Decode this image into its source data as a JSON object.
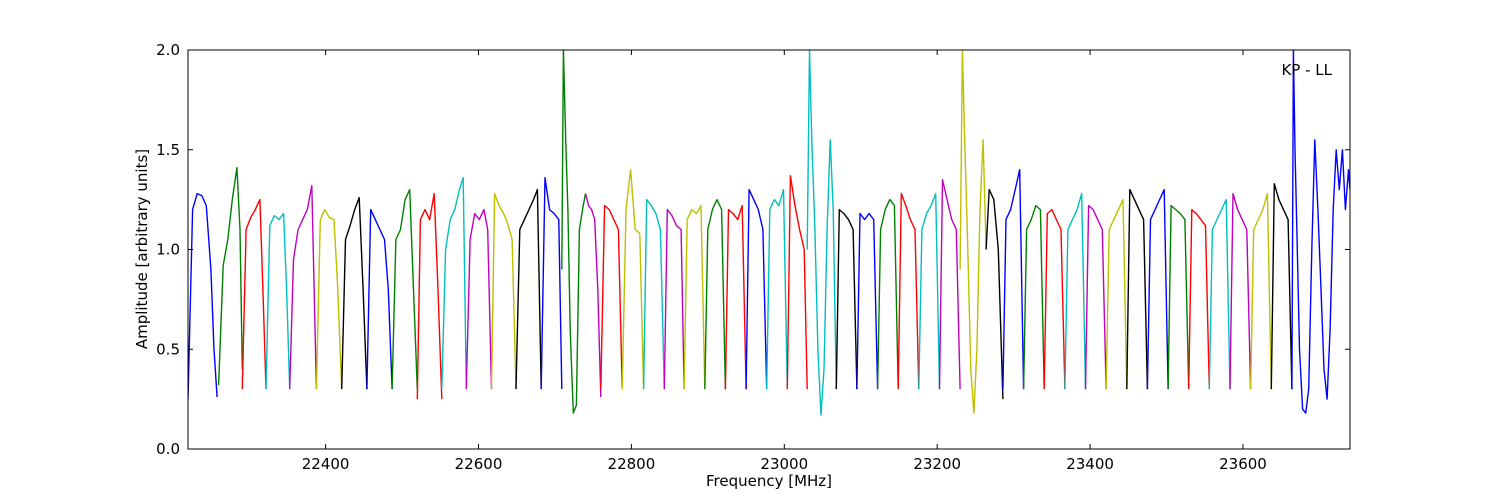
{
  "chart_data": {
    "type": "line",
    "title": "",
    "xlabel": "Frequency [MHz]",
    "ylabel": "Amplitude [arbitrary units]",
    "annotation": "KP - LL",
    "xlim": [
      22220,
      23740
    ],
    "ylim": [
      0.0,
      2.0
    ],
    "xticks": [
      22400,
      22600,
      22800,
      23000,
      23200,
      23400,
      23600
    ],
    "xtick_labels": [
      "22400",
      "22600",
      "22800",
      "23000",
      "23200",
      "23400",
      "23600"
    ],
    "yticks": [
      0.0,
      0.5,
      1.0,
      1.5,
      2.0
    ],
    "ytick_labels": [
      "0.0",
      "0.5",
      "1.0",
      "1.5",
      "2.0"
    ],
    "grid": false,
    "legend": "none",
    "color_cycle": [
      "#0000ff",
      "#008000",
      "#ff0000",
      "#00bfbf",
      "#bf00bf",
      "#bfbf00",
      "#000000"
    ],
    "series": [
      {
        "color": "#0000ff",
        "x": [
          22220,
          22226,
          22232,
          22238,
          22244,
          22250,
          22254,
          22258
        ],
        "y": [
          0.25,
          1.2,
          1.28,
          1.27,
          1.22,
          0.9,
          0.5,
          0.26
        ]
      },
      {
        "color": "#008000",
        "x": [
          22260,
          22266,
          22272,
          22278,
          22284,
          22288,
          22291
        ],
        "y": [
          0.32,
          0.92,
          1.05,
          1.25,
          1.41,
          1.1,
          0.4
        ]
      },
      {
        "color": "#ff0000",
        "x": [
          22291,
          22296,
          22302,
          22308,
          22314,
          22318,
          22322
        ],
        "y": [
          0.3,
          1.1,
          1.16,
          1.2,
          1.25,
          0.8,
          0.3
        ]
      },
      {
        "color": "#00bfbf",
        "x": [
          22322,
          22327,
          22333,
          22339,
          22345,
          22349,
          22353
        ],
        "y": [
          0.3,
          1.12,
          1.17,
          1.15,
          1.18,
          0.8,
          0.3
        ]
      },
      {
        "color": "#bf00bf",
        "x": [
          22353,
          22358,
          22364,
          22370,
          22376,
          22382,
          22388
        ],
        "y": [
          0.3,
          0.95,
          1.1,
          1.15,
          1.2,
          1.32,
          0.3
        ]
      },
      {
        "color": "#bfbf00",
        "x": [
          22388,
          22393,
          22399,
          22405,
          22411,
          22416,
          22421
        ],
        "y": [
          0.3,
          1.15,
          1.2,
          1.16,
          1.15,
          0.8,
          0.3
        ]
      },
      {
        "color": "#000000",
        "x": [
          22421,
          22426,
          22432,
          22438,
          22444,
          22449,
          22454
        ],
        "y": [
          0.3,
          1.05,
          1.12,
          1.2,
          1.26,
          0.8,
          0.3
        ]
      },
      {
        "color": "#0000ff",
        "x": [
          22454,
          22459,
          22465,
          22471,
          22477,
          22482,
          22487
        ],
        "y": [
          0.3,
          1.2,
          1.15,
          1.1,
          1.05,
          0.8,
          0.3
        ]
      },
      {
        "color": "#008000",
        "x": [
          22487,
          22492,
          22498,
          22504,
          22510,
          22515,
          22520
        ],
        "y": [
          0.3,
          1.05,
          1.1,
          1.25,
          1.3,
          0.8,
          0.3
        ]
      },
      {
        "color": "#ff0000",
        "x": [
          22520,
          22524,
          22530,
          22536,
          22542,
          22547,
          22552
        ],
        "y": [
          0.25,
          1.15,
          1.2,
          1.15,
          1.28,
          0.8,
          0.25
        ]
      },
      {
        "color": "#00bfbf",
        "x": [
          22552,
          22557,
          22563,
          22569,
          22575,
          22580,
          22584
        ],
        "y": [
          0.3,
          1.0,
          1.15,
          1.2,
          1.3,
          1.36,
          0.3
        ]
      },
      {
        "color": "#bf00bf",
        "x": [
          22584,
          22589,
          22595,
          22601,
          22607,
          22612,
          22617
        ],
        "y": [
          0.3,
          1.05,
          1.18,
          1.15,
          1.2,
          1.1,
          0.3
        ]
      },
      {
        "color": "#bfbf00",
        "x": [
          22617,
          22621,
          22627,
          22633,
          22639,
          22644,
          22649
        ],
        "y": [
          0.3,
          1.28,
          1.22,
          1.18,
          1.12,
          1.05,
          0.3
        ]
      },
      {
        "color": "#000000",
        "x": [
          22649,
          22654,
          22660,
          22666,
          22672,
          22677,
          22682
        ],
        "y": [
          0.3,
          1.1,
          1.15,
          1.2,
          1.25,
          1.3,
          0.3
        ]
      },
      {
        "color": "#0000ff",
        "x": [
          22682,
          22687,
          22693,
          22699,
          22705,
          22709
        ],
        "y": [
          0.3,
          1.36,
          1.2,
          1.18,
          1.15,
          0.3
        ]
      },
      {
        "color": "#008000",
        "x": [
          22709,
          22711,
          22714,
          22717,
          22720,
          22724,
          22728,
          22732,
          22736,
          22740
        ],
        "y": [
          0.9,
          2.0,
          1.55,
          1.2,
          0.6,
          0.18,
          0.22,
          1.1,
          1.2,
          1.28
        ]
      },
      {
        "color": "#bf00bf",
        "x": [
          22740,
          22744,
          22748,
          22752,
          22756,
          22760
        ],
        "y": [
          1.28,
          1.22,
          1.2,
          1.15,
          0.8,
          0.26
        ]
      },
      {
        "color": "#ff0000",
        "x": [
          22760,
          22765,
          22771,
          22777,
          22783,
          22788
        ],
        "y": [
          0.3,
          1.22,
          1.2,
          1.15,
          1.1,
          0.3
        ]
      },
      {
        "color": "#bfbf00",
        "x": [
          22788,
          22793,
          22799,
          22805,
          22811,
          22816
        ],
        "y": [
          0.3,
          1.2,
          1.4,
          1.1,
          1.08,
          0.3
        ]
      },
      {
        "color": "#00bfbf",
        "x": [
          22816,
          22820,
          22826,
          22832,
          22838,
          22843
        ],
        "y": [
          0.3,
          1.25,
          1.22,
          1.18,
          1.1,
          0.3
        ]
      },
      {
        "color": "#bf00bf",
        "x": [
          22843,
          22847,
          22853,
          22859,
          22865,
          22869
        ],
        "y": [
          0.3,
          1.2,
          1.17,
          1.12,
          1.1,
          0.3
        ]
      },
      {
        "color": "#bfbf00",
        "x": [
          22869,
          22873,
          22879,
          22885,
          22891,
          22896
        ],
        "y": [
          0.3,
          1.15,
          1.2,
          1.18,
          1.22,
          0.3
        ]
      },
      {
        "color": "#008000",
        "x": [
          22896,
          22900,
          22906,
          22912,
          22918,
          22923
        ],
        "y": [
          0.3,
          1.1,
          1.2,
          1.25,
          1.2,
          0.3
        ]
      },
      {
        "color": "#ff0000",
        "x": [
          22923,
          22927,
          22933,
          22939,
          22945,
          22950
        ],
        "y": [
          0.3,
          1.2,
          1.18,
          1.15,
          1.22,
          0.3
        ]
      },
      {
        "color": "#0000ff",
        "x": [
          22950,
          22954,
          22960,
          22966,
          22972,
          22977
        ],
        "y": [
          0.3,
          1.3,
          1.25,
          1.2,
          1.1,
          0.3
        ]
      },
      {
        "color": "#00bfbf",
        "x": [
          22977,
          22981,
          22987,
          22993,
          22999,
          23004
        ],
        "y": [
          0.3,
          1.2,
          1.25,
          1.22,
          1.3,
          0.3
        ]
      },
      {
        "color": "#ff0000",
        "x": [
          23004,
          23008,
          23014,
          23020,
          23026,
          23030
        ],
        "y": [
          0.3,
          1.37,
          1.22,
          1.1,
          1.0,
          0.3
        ]
      },
      {
        "color": "#00bfbf",
        "x": [
          23030,
          23033,
          23036,
          23040,
          23044,
          23048,
          23052,
          23056,
          23060,
          23064,
          23068
        ],
        "y": [
          1.0,
          2.0,
          1.55,
          1.1,
          0.5,
          0.17,
          0.4,
          1.1,
          1.55,
          1.2,
          0.3
        ]
      },
      {
        "color": "#000000",
        "x": [
          23068,
          23072,
          23078,
          23084,
          23090,
          23095
        ],
        "y": [
          0.3,
          1.2,
          1.18,
          1.15,
          1.1,
          0.3
        ]
      },
      {
        "color": "#0000ff",
        "x": [
          23095,
          23099,
          23105,
          23111,
          23117,
          23122
        ],
        "y": [
          0.3,
          1.18,
          1.15,
          1.18,
          1.15,
          0.3
        ]
      },
      {
        "color": "#008000",
        "x": [
          23122,
          23126,
          23132,
          23138,
          23144,
          23149
        ],
        "y": [
          0.3,
          1.1,
          1.2,
          1.25,
          1.22,
          0.3
        ]
      },
      {
        "color": "#ff0000",
        "x": [
          23149,
          23153,
          23159,
          23165,
          23171,
          23176
        ],
        "y": [
          0.3,
          1.28,
          1.22,
          1.15,
          1.1,
          0.3
        ]
      },
      {
        "color": "#00bfbf",
        "x": [
          23176,
          23180,
          23186,
          23192,
          23198,
          23203
        ],
        "y": [
          0.3,
          1.1,
          1.18,
          1.22,
          1.28,
          0.3
        ]
      },
      {
        "color": "#bf00bf",
        "x": [
          23203,
          23207,
          23213,
          23219,
          23225,
          23230
        ],
        "y": [
          0.3,
          1.35,
          1.25,
          1.15,
          1.1,
          0.3
        ]
      },
      {
        "color": "#bfbf00",
        "x": [
          23230,
          23233,
          23236,
          23240,
          23244,
          23248,
          23252,
          23256,
          23260,
          23264
        ],
        "y": [
          0.9,
          2.0,
          1.55,
          1.0,
          0.4,
          0.18,
          0.5,
          1.2,
          1.55,
          1.0
        ]
      },
      {
        "color": "#000000",
        "x": [
          23264,
          23268,
          23274,
          23280,
          23286
        ],
        "y": [
          1.0,
          1.3,
          1.25,
          1.0,
          0.25
        ]
      },
      {
        "color": "#0000ff",
        "x": [
          23286,
          23290,
          23296,
          23302,
          23308,
          23313
        ],
        "y": [
          0.3,
          1.15,
          1.2,
          1.3,
          1.4,
          0.3
        ]
      },
      {
        "color": "#008000",
        "x": [
          23313,
          23317,
          23323,
          23329,
          23335,
          23340
        ],
        "y": [
          0.3,
          1.1,
          1.15,
          1.22,
          1.2,
          0.3
        ]
      },
      {
        "color": "#ff0000",
        "x": [
          23340,
          23344,
          23350,
          23356,
          23362,
          23367
        ],
        "y": [
          0.3,
          1.18,
          1.2,
          1.15,
          1.1,
          0.3
        ]
      },
      {
        "color": "#00bfbf",
        "x": [
          23367,
          23371,
          23377,
          23383,
          23389,
          23394
        ],
        "y": [
          0.3,
          1.1,
          1.15,
          1.2,
          1.28,
          0.3
        ]
      },
      {
        "color": "#bf00bf",
        "x": [
          23394,
          23398,
          23404,
          23410,
          23416,
          23421
        ],
        "y": [
          0.3,
          1.22,
          1.2,
          1.15,
          1.1,
          0.3
        ]
      },
      {
        "color": "#bfbf00",
        "x": [
          23421,
          23425,
          23431,
          23437,
          23443,
          23448
        ],
        "y": [
          0.3,
          1.1,
          1.15,
          1.2,
          1.25,
          0.3
        ]
      },
      {
        "color": "#000000",
        "x": [
          23448,
          23452,
          23458,
          23464,
          23470,
          23475
        ],
        "y": [
          0.3,
          1.3,
          1.25,
          1.2,
          1.15,
          0.3
        ]
      },
      {
        "color": "#0000ff",
        "x": [
          23475,
          23479,
          23485,
          23491,
          23497,
          23502
        ],
        "y": [
          0.3,
          1.15,
          1.2,
          1.25,
          1.3,
          0.3
        ]
      },
      {
        "color": "#008000",
        "x": [
          23502,
          23506,
          23512,
          23518,
          23524,
          23529
        ],
        "y": [
          0.3,
          1.22,
          1.2,
          1.18,
          1.15,
          0.3
        ]
      },
      {
        "color": "#ff0000",
        "x": [
          23529,
          23533,
          23539,
          23545,
          23551,
          23556
        ],
        "y": [
          0.3,
          1.2,
          1.18,
          1.15,
          1.12,
          0.3
        ]
      },
      {
        "color": "#00bfbf",
        "x": [
          23556,
          23560,
          23566,
          23572,
          23578,
          23583
        ],
        "y": [
          0.3,
          1.1,
          1.15,
          1.2,
          1.25,
          0.3
        ]
      },
      {
        "color": "#bf00bf",
        "x": [
          23583,
          23587,
          23593,
          23599,
          23605,
          23610
        ],
        "y": [
          0.3,
          1.28,
          1.2,
          1.15,
          1.1,
          0.3
        ]
      },
      {
        "color": "#bfbf00",
        "x": [
          23610,
          23614,
          23620,
          23626,
          23632,
          23637
        ],
        "y": [
          0.3,
          1.1,
          1.15,
          1.2,
          1.28,
          0.3
        ]
      },
      {
        "color": "#000000",
        "x": [
          23637,
          23641,
          23647,
          23653,
          23659,
          23664
        ],
        "y": [
          0.3,
          1.33,
          1.25,
          1.2,
          1.15,
          0.3
        ]
      },
      {
        "color": "#0000ff",
        "x": [
          23664,
          23666,
          23668,
          23671,
          23674,
          23678,
          23682,
          23686,
          23690,
          23694,
          23698,
          23702,
          23706,
          23710,
          23714,
          23718,
          23722,
          23726,
          23730,
          23734,
          23738,
          23740
        ],
        "y": [
          0.3,
          2.0,
          1.5,
          1.0,
          0.5,
          0.2,
          0.18,
          0.3,
          1.0,
          1.55,
          1.2,
          0.8,
          0.4,
          0.25,
          0.6,
          1.2,
          1.5,
          1.3,
          1.5,
          1.2,
          1.4,
          1.3
        ]
      }
    ]
  }
}
